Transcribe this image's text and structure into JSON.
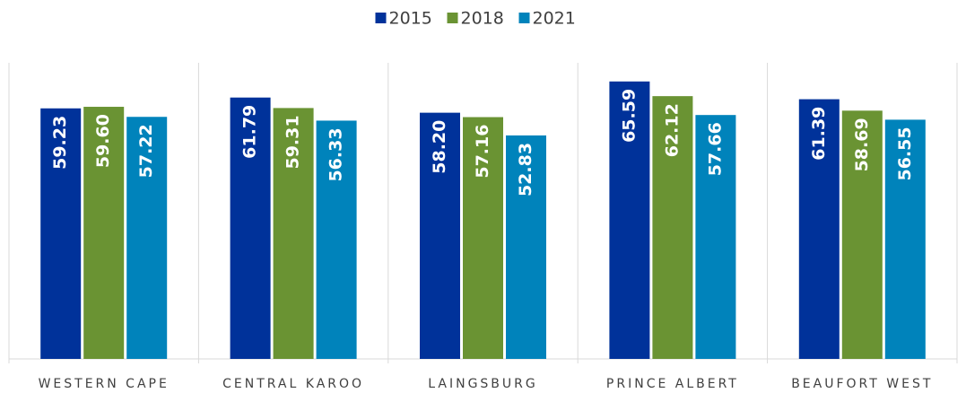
{
  "chart_data": {
    "type": "bar",
    "categories": [
      "WESTERN CAPE",
      "CENTRAL KAROO",
      "LAINGSBURG",
      "PRINCE ALBERT",
      "BEAUFORT WEST"
    ],
    "series": [
      {
        "name": "2015",
        "color": "#00329a",
        "values": [
          59.23,
          61.79,
          58.2,
          65.59,
          61.39
        ],
        "value_labels": [
          "59.23",
          "61.79",
          "58.20",
          "65.59",
          "61.39"
        ]
      },
      {
        "name": "2018",
        "color": "#6a9333",
        "values": [
          59.6,
          59.31,
          57.16,
          62.12,
          58.69
        ],
        "value_labels": [
          "59.60",
          "59.31",
          "57.16",
          "62.12",
          "58.69"
        ]
      },
      {
        "name": "2021",
        "color": "#0083bb",
        "values": [
          57.22,
          56.33,
          52.83,
          57.66,
          56.55
        ],
        "value_labels": [
          "57.22",
          "56.33",
          "52.83",
          "57.66",
          "56.55"
        ]
      }
    ],
    "ylim": [
      0,
      70
    ],
    "legend": "top"
  }
}
